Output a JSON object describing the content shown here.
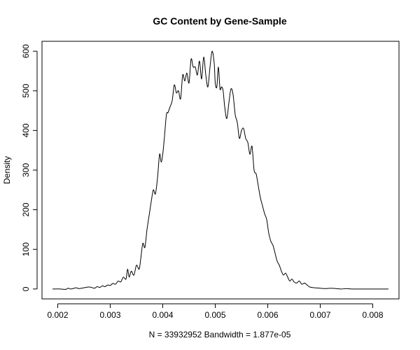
{
  "chart_data": {
    "type": "line",
    "title": "GC Content by Gene-Sample",
    "xlabel": "N = 33932952   Bandwidth = 1.877e-05",
    "ylabel": "Density",
    "xlim": [
      0.0017,
      0.0085
    ],
    "ylim": [
      -25,
      625
    ],
    "x_ticks": [
      0.002,
      0.003,
      0.004,
      0.005,
      0.006,
      0.007,
      0.008
    ],
    "x_tick_labels": [
      "0.002",
      "0.003",
      "0.004",
      "0.005",
      "0.006",
      "0.007",
      "0.008"
    ],
    "y_ticks": [
      0,
      100,
      200,
      300,
      400,
      500,
      600
    ],
    "y_tick_labels": [
      "0",
      "100",
      "200",
      "300",
      "400",
      "500",
      "600"
    ],
    "grid": false,
    "legend": "none",
    "series": [
      {
        "color": "#000000",
        "x": [
          0.0019,
          0.00205,
          0.00215,
          0.0022,
          0.00225,
          0.00235,
          0.0024,
          0.0025,
          0.0026,
          0.0027,
          0.00275,
          0.0028,
          0.00285,
          0.0029,
          0.00295,
          0.003,
          0.00305,
          0.0031,
          0.00315,
          0.0032,
          0.00325,
          0.0033,
          0.00333,
          0.00336,
          0.0034,
          0.00345,
          0.0035,
          0.00355,
          0.00358,
          0.00362,
          0.00366,
          0.0037,
          0.00374,
          0.00378,
          0.00382,
          0.00386,
          0.0039,
          0.00394,
          0.00397,
          0.004,
          0.00403,
          0.00407,
          0.0041,
          0.00414,
          0.00418,
          0.00422,
          0.00426,
          0.0043,
          0.00434,
          0.00438,
          0.00442,
          0.00446,
          0.0045,
          0.00454,
          0.00458,
          0.00462,
          0.00466,
          0.0047,
          0.00474,
          0.00478,
          0.00482,
          0.00486,
          0.0049,
          0.00494,
          0.00498,
          0.005,
          0.00503,
          0.00506,
          0.00509,
          0.00512,
          0.00515,
          0.00518,
          0.00522,
          0.00526,
          0.0053,
          0.00534,
          0.00538,
          0.00542,
          0.00546,
          0.0055,
          0.00554,
          0.00558,
          0.00562,
          0.00566,
          0.0057,
          0.00574,
          0.00578,
          0.00582,
          0.00586,
          0.0059,
          0.00594,
          0.00598,
          0.00602,
          0.00606,
          0.0061,
          0.00614,
          0.00618,
          0.00622,
          0.00626,
          0.0063,
          0.00634,
          0.00638,
          0.00642,
          0.00646,
          0.0065,
          0.00655,
          0.0066,
          0.00665,
          0.0067,
          0.00675,
          0.0068,
          0.0069,
          0.007,
          0.0071,
          0.0072,
          0.0073,
          0.0074,
          0.0075,
          0.0076,
          0.0078,
          0.008,
          0.0082,
          0.0083
        ],
        "y": [
          0,
          0,
          -1,
          2,
          0,
          3,
          1,
          3,
          5,
          2,
          6,
          4,
          8,
          6,
          10,
          9,
          14,
          12,
          20,
          18,
          30,
          25,
          50,
          30,
          45,
          35,
          60,
          50,
          75,
          115,
          105,
          150,
          185,
          220,
          250,
          240,
          280,
          340,
          320,
          340,
          380,
          440,
          445,
          460,
          475,
          515,
          495,
          500,
          480,
          540,
          525,
          545,
          520,
          580,
          560,
          560,
          540,
          575,
          530,
          585,
          540,
          510,
          560,
          600,
          570,
          520,
          510,
          560,
          505,
          510,
          500,
          460,
          430,
          470,
          505,
          490,
          440,
          420,
          380,
          400,
          405,
          380,
          370,
          340,
          360,
          300,
          290,
          260,
          230,
          210,
          190,
          175,
          140,
          120,
          110,
          90,
          70,
          60,
          45,
          35,
          40,
          30,
          20,
          25,
          18,
          15,
          20,
          12,
          15,
          10,
          5,
          3,
          2,
          1,
          2,
          1,
          0,
          1,
          0,
          0,
          0,
          0,
          0
        ]
      }
    ]
  }
}
